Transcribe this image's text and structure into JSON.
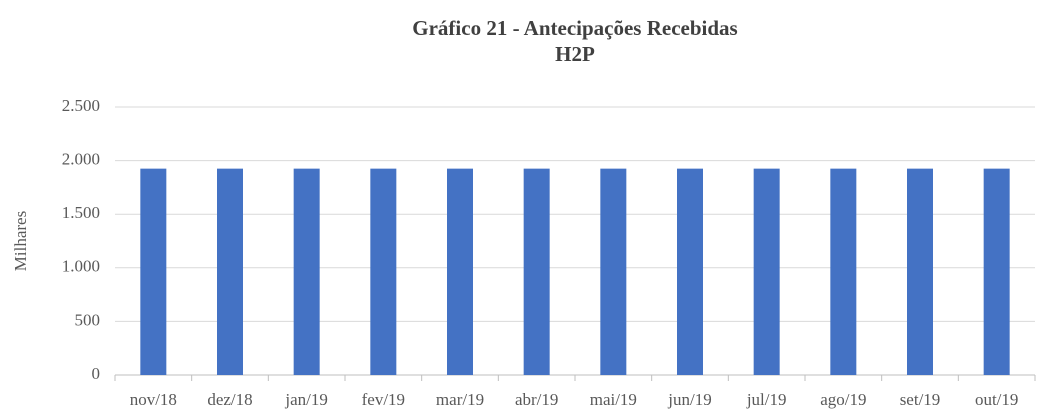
{
  "chart_data": {
    "type": "bar",
    "title": "Gráfico 21 - Antecipações Recebidas",
    "subtitle": "H2P",
    "y_label": "Milhares",
    "categories": [
      "nov/18",
      "dez/18",
      "jan/19",
      "fev/19",
      "mar/19",
      "abr/19",
      "mai/19",
      "jun/19",
      "jul/19",
      "ago/19",
      "set/19",
      "out/19"
    ],
    "values": [
      1925,
      1925,
      1925,
      1925,
      1925,
      1925,
      1925,
      1925,
      1925,
      1925,
      1925,
      1925
    ],
    "color": "#4472c4",
    "ylim": [
      0,
      2500
    ],
    "yticks": [
      0,
      500,
      {
        "value": 1000,
        "label": "1.000"
      },
      {
        "value": 1500,
        "label": "1.500"
      },
      {
        "value": 2000,
        "label": "2.000"
      },
      {
        "value": 2500,
        "label": "2.500"
      }
    ],
    "grid": true
  }
}
